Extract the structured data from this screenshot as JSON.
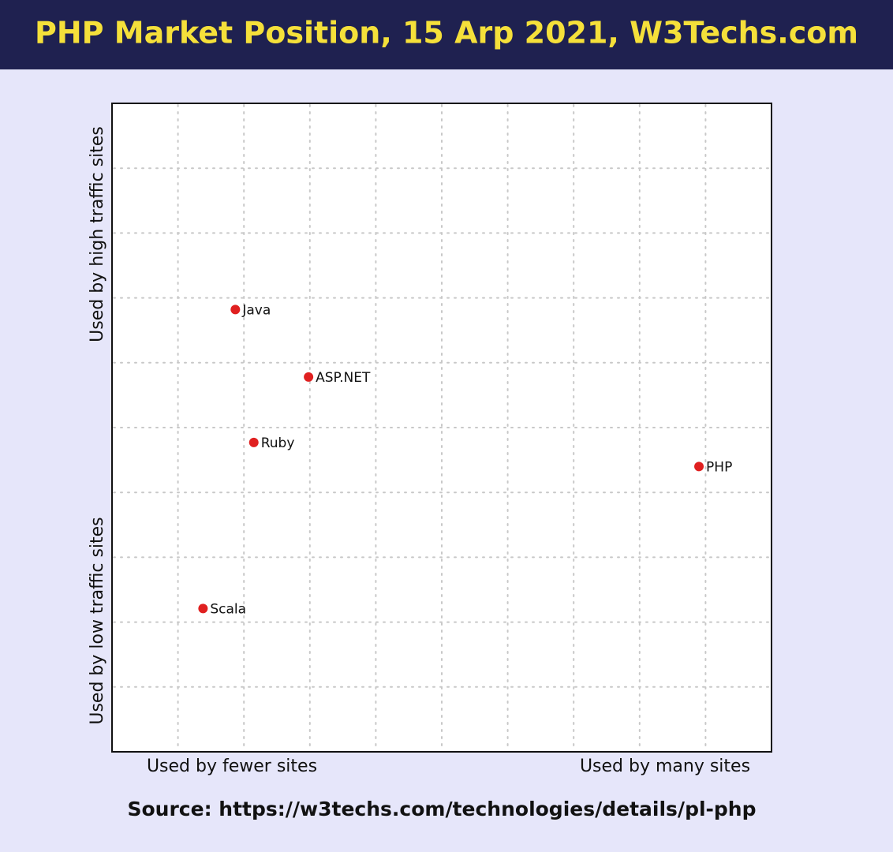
{
  "chart_data": {
    "type": "scatter",
    "title": "PHP Market Position, 15 Arp 2021, W3Techs.com",
    "x": [
      1.87,
      2.98,
      2.15,
      8.9,
      1.38
    ],
    "values": [
      6.82,
      5.78,
      4.77,
      4.4,
      2.21
    ],
    "labels": [
      "Java",
      "ASP.NET",
      "Ruby",
      "PHP",
      "Scala"
    ],
    "color": "#e02020",
    "xlim": [
      0,
      10
    ],
    "ylim": [
      0,
      10
    ],
    "xticks": [
      1,
      2,
      3,
      4,
      5,
      6,
      7,
      8,
      9
    ],
    "yticks": [
      1,
      2,
      3,
      4,
      5,
      6,
      7,
      8,
      9
    ],
    "grid": true,
    "xlabels": [
      "Used by fewer sites",
      "Used by many sites"
    ],
    "ylabels": [
      "Used by low traffic sites",
      "Used by high traffic sites"
    ],
    "source": "Source: https://w3techs.com/technologies/details/pl-php"
  }
}
